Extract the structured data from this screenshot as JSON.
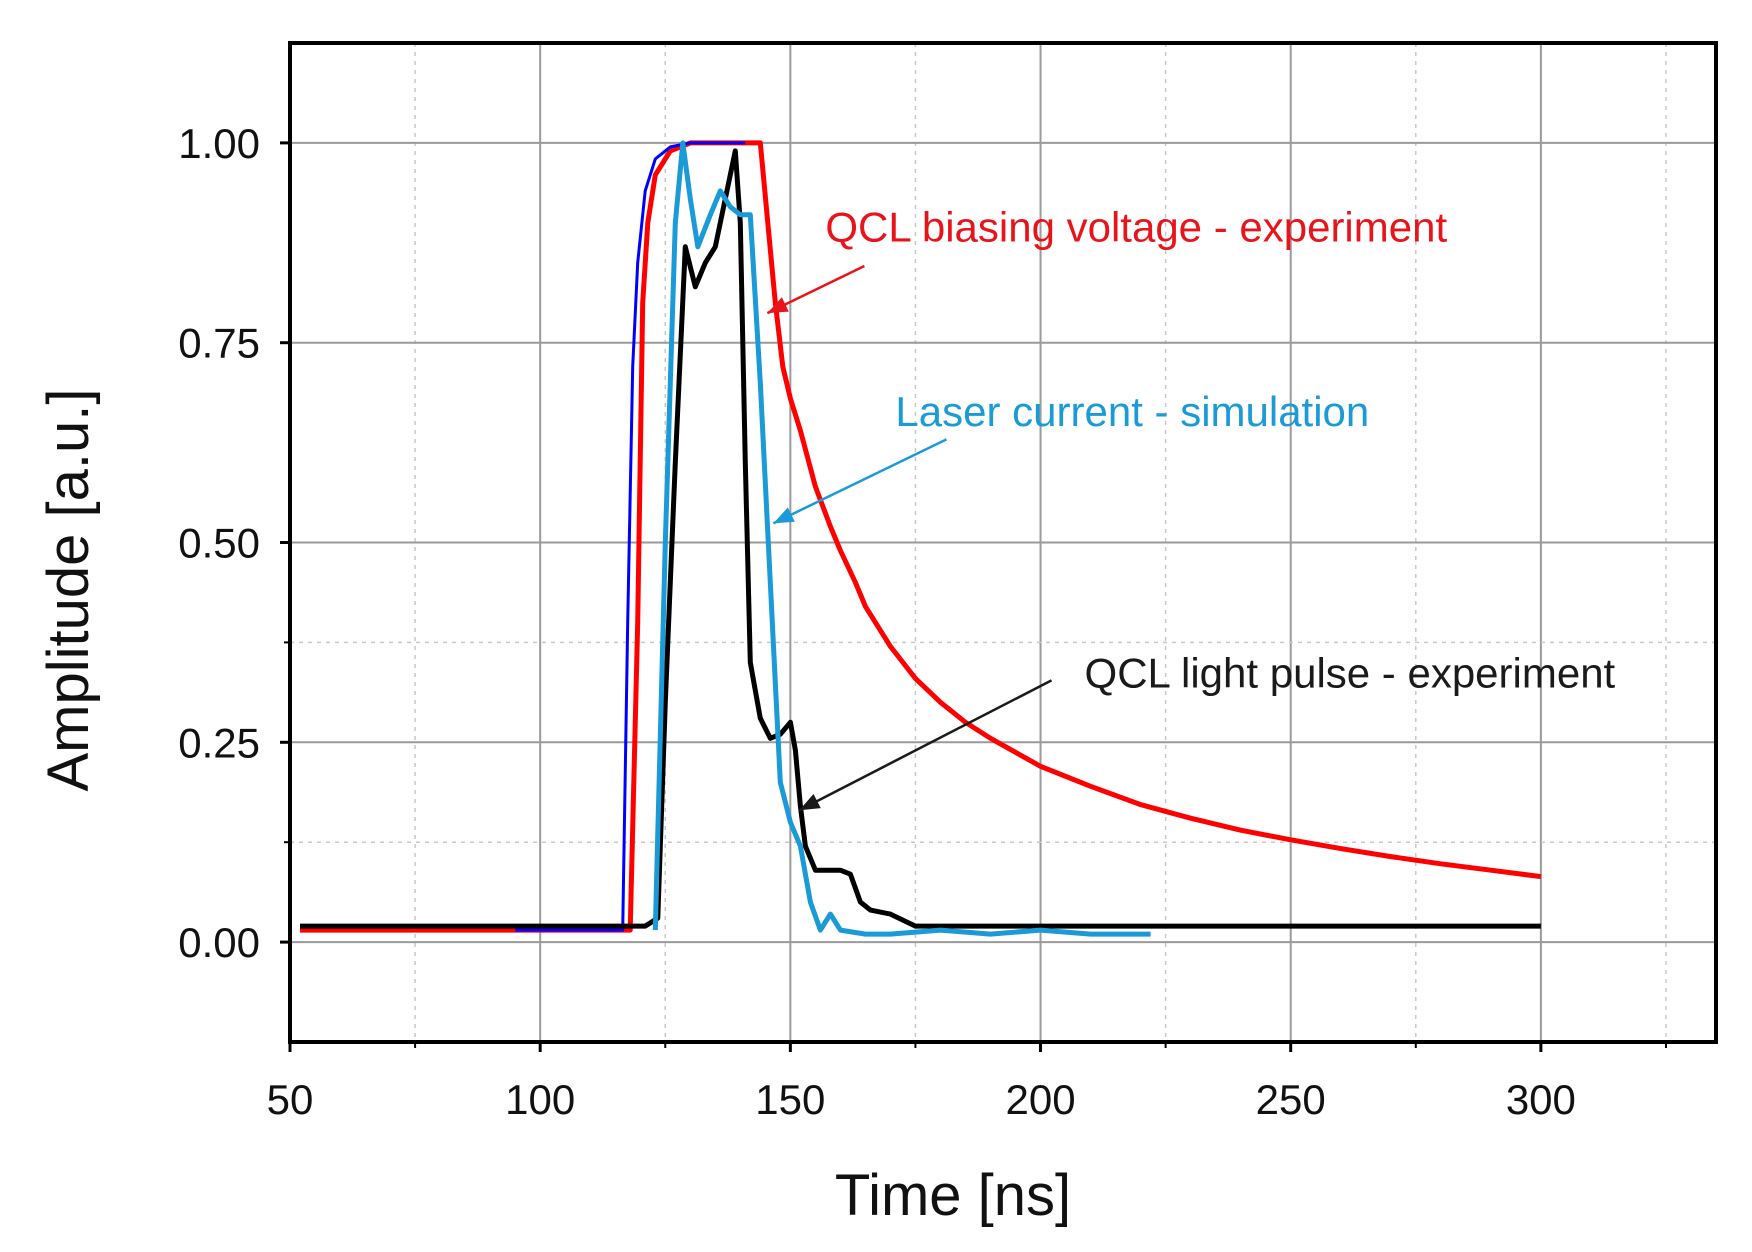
{
  "chart_data": {
    "type": "line",
    "title": "",
    "xlabel": "Time [ns]",
    "ylabel": "Amplitude [a.u.]",
    "xlim": [
      50,
      335
    ],
    "ylim": [
      -0.125,
      1.125
    ],
    "xticks": [
      50,
      100,
      150,
      200,
      250,
      300
    ],
    "xtick_labels": [
      "50",
      "100",
      "150",
      "200",
      "250",
      "300"
    ],
    "yticks": [
      0,
      0.25,
      0.5,
      0.75,
      1.0
    ],
    "ytick_labels": [
      "0.00",
      "0.25",
      "0.50",
      "0.75",
      "1.00"
    ],
    "x_minor_grid": [
      75,
      125,
      175,
      225,
      275,
      325
    ],
    "y_minor_grid": [
      0.125,
      0.375
    ],
    "grid": true,
    "series": [
      {
        "name": "QCL biasing voltage - experiment",
        "color": "#ff0000",
        "x": [
          52,
          118,
          119.5,
          120.5,
          121.5,
          123,
          126,
          130,
          144,
          145.5,
          147,
          148.5,
          150,
          152,
          155,
          158,
          160,
          163,
          165,
          168,
          170,
          175,
          180,
          185,
          190,
          200,
          210,
          220,
          230,
          240,
          250,
          260,
          270,
          280,
          290,
          300
        ],
        "y": [
          0.015,
          0.015,
          0.4,
          0.8,
          0.9,
          0.96,
          0.99,
          1.0,
          1.0,
          0.9,
          0.8,
          0.72,
          0.68,
          0.64,
          0.57,
          0.52,
          0.49,
          0.45,
          0.42,
          0.39,
          0.37,
          0.33,
          0.3,
          0.275,
          0.255,
          0.22,
          0.195,
          0.172,
          0.155,
          0.14,
          0.128,
          0.117,
          0.107,
          0.098,
          0.09,
          0.082
        ]
      },
      {
        "name": "",
        "color": "#0000ff",
        "x": [
          95,
          116.5,
          117.5,
          118.5,
          119.5,
          121,
          123,
          126,
          130,
          141
        ],
        "y": [
          0.015,
          0.015,
          0.4,
          0.72,
          0.85,
          0.94,
          0.98,
          0.995,
          1.0,
          1.0
        ]
      },
      {
        "name": "QCL light pulse - experiment",
        "color": "#000000",
        "x": [
          52,
          121,
          123.5,
          125,
          127,
          129,
          131,
          133,
          135,
          137,
          139,
          140,
          141,
          142,
          144,
          146,
          148,
          150,
          151,
          152,
          153,
          155,
          160,
          162,
          164,
          166,
          170,
          175,
          200,
          250,
          300
        ],
        "y": [
          0.02,
          0.02,
          0.03,
          0.3,
          0.6,
          0.87,
          0.82,
          0.85,
          0.87,
          0.93,
          0.99,
          0.9,
          0.6,
          0.35,
          0.28,
          0.255,
          0.26,
          0.275,
          0.24,
          0.17,
          0.12,
          0.09,
          0.09,
          0.085,
          0.05,
          0.04,
          0.035,
          0.02,
          0.02,
          0.02,
          0.02
        ]
      },
      {
        "name": "Laser current - simulation",
        "color": "#1a9ad6",
        "x": [
          123,
          125,
          127,
          128.5,
          130,
          131.5,
          134,
          136,
          138,
          140,
          142,
          144,
          146,
          148,
          150,
          152,
          154,
          156,
          158,
          160,
          165,
          170,
          180,
          190,
          200,
          210,
          222
        ],
        "y": [
          0.015,
          0.5,
          0.9,
          1.0,
          0.93,
          0.87,
          0.91,
          0.94,
          0.92,
          0.91,
          0.91,
          0.7,
          0.45,
          0.2,
          0.15,
          0.12,
          0.05,
          0.015,
          0.035,
          0.015,
          0.01,
          0.01,
          0.015,
          0.01,
          0.015,
          0.01,
          0.01
        ]
      }
    ],
    "annotations": [
      {
        "text": "QCL biasing voltage - experiment",
        "color": "#e8141b",
        "text_x": 157,
        "text_y": 0.894,
        "arrow_from": [
          164.8,
          0.846
        ],
        "arrow_to": [
          145.4,
          0.787
        ]
      },
      {
        "text": "Laser current - simulation",
        "color": "#1a9ad6",
        "text_x": 171,
        "text_y": 0.663,
        "arrow_from": [
          181.2,
          0.629
        ],
        "arrow_to": [
          146.6,
          0.524
        ]
      },
      {
        "text": "QCL light pulse - experiment",
        "color": "#1a1a1a",
        "text_x": 208.8,
        "text_y": 0.336,
        "arrow_from": [
          202.2,
          0.3275
        ],
        "arrow_to": [
          151.8,
          0.165
        ]
      }
    ]
  }
}
